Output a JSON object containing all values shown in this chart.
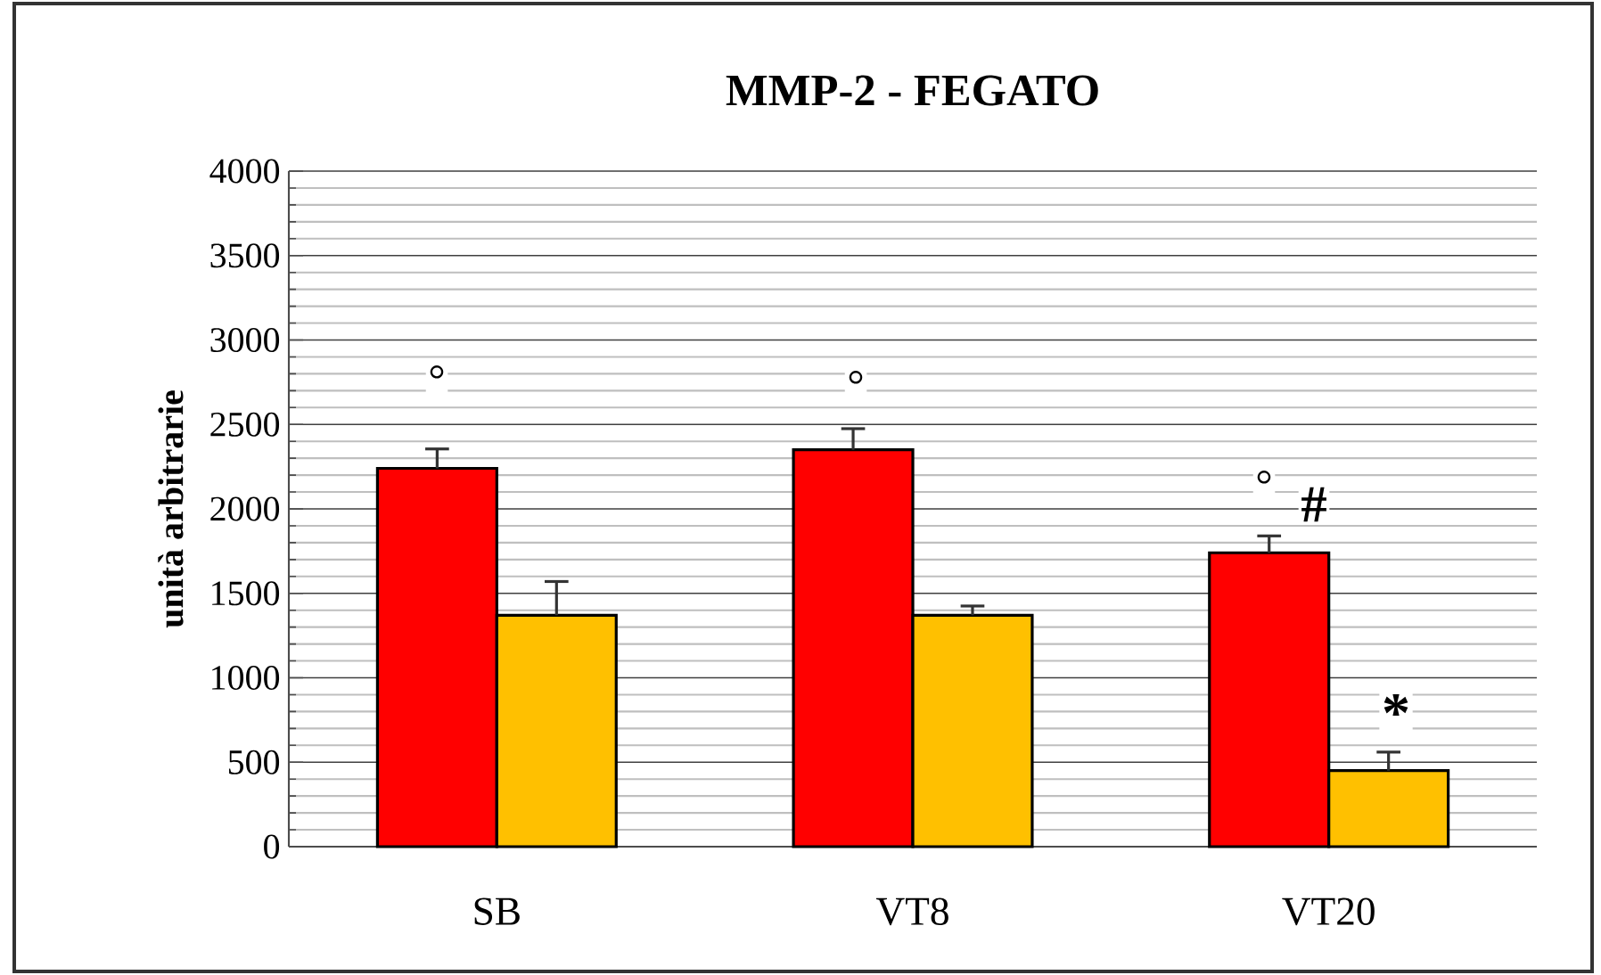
{
  "chart_data": {
    "type": "bar",
    "title": "MMP-2 - FEGATO",
    "ylabel": "unità arbitrarie",
    "categories": [
      "SB",
      "VT8",
      "VT20"
    ],
    "series": [
      {
        "color": "#ff0000",
        "values": [
          2240,
          2350,
          1740
        ],
        "errors": [
          [
            2240,
            2355
          ],
          [
            2350,
            2475
          ],
          [
            1740,
            1840
          ]
        ]
      },
      {
        "color": "#ffc000",
        "values": [
          1370,
          1370,
          450
        ],
        "errors": [
          [
            1370,
            1570
          ],
          [
            1370,
            1425
          ],
          [
            450,
            560
          ]
        ]
      }
    ],
    "ylim": [
      0,
      4000
    ],
    "yticks": [
      0,
      500,
      1000,
      1500,
      2000,
      2500,
      3000,
      3500,
      4000
    ],
    "grid": "y",
    "annotations": [
      "°",
      "°",
      "°",
      "#",
      "*"
    ]
  }
}
